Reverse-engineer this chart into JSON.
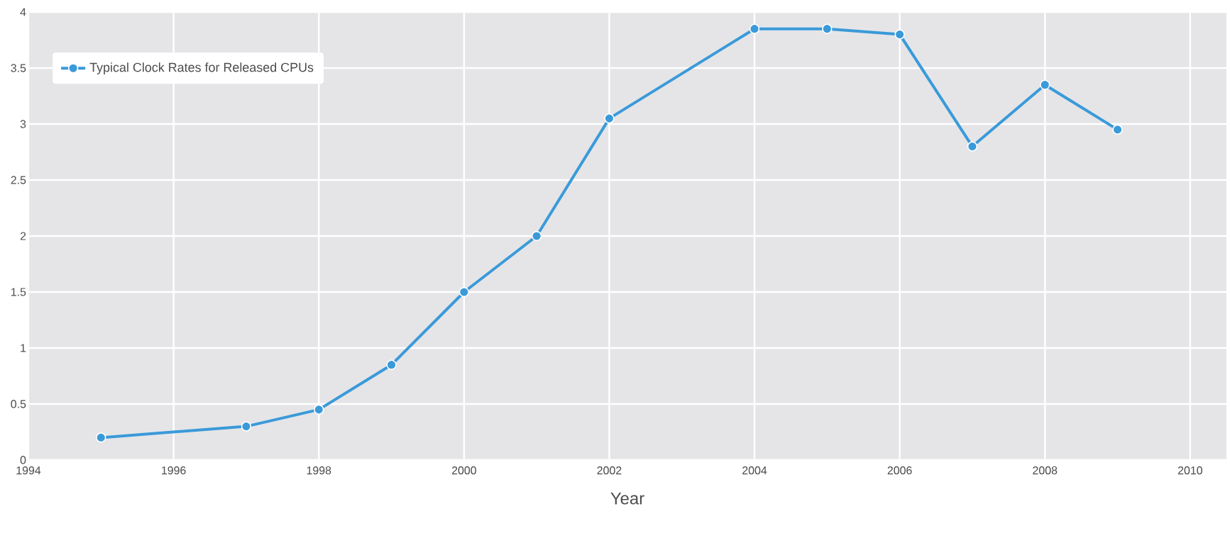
{
  "chart_data": {
    "type": "line",
    "xlabel": "Year",
    "series": [
      {
        "name": "Typical Clock Rates for Released CPUs",
        "color": "#3a9ad9",
        "x": [
          1995,
          1997,
          1998,
          1999,
          2000,
          2001,
          2002,
          2004,
          2005,
          2006,
          2007,
          2008,
          2009
        ],
        "values": [
          0.2,
          0.3,
          0.45,
          0.85,
          1.5,
          2.0,
          3.05,
          3.85,
          3.85,
          3.8,
          2.8,
          3.35,
          2.95
        ]
      }
    ],
    "xlim": [
      1994,
      2010.5
    ],
    "xticks": [
      1994,
      1996,
      1998,
      2000,
      2002,
      2004,
      2006,
      2008,
      2010
    ],
    "ylim": [
      0,
      4
    ],
    "yticks": [
      0,
      0.5,
      1,
      1.5,
      2,
      2.5,
      3,
      3.5,
      4
    ],
    "grid": true,
    "legend": "top left",
    "marker": "circle",
    "line_style": "solid"
  }
}
